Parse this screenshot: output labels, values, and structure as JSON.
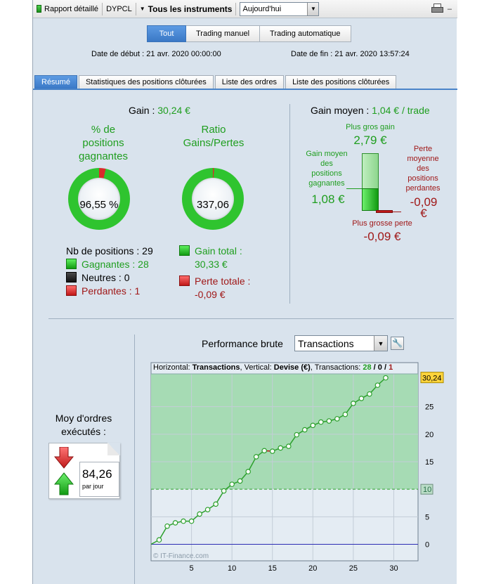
{
  "toolbar": {
    "report_label": "Rapport détaillé",
    "account": "DYPCL",
    "instruments_label": "Tous les instruments",
    "period": "Aujourd'hui",
    "minimize": "–"
  },
  "modes": {
    "tout": "Tout",
    "manual": "Trading manuel",
    "auto": "Trading automatique"
  },
  "dates": {
    "start": "Date de début : 21 avr. 2020 00:00:00",
    "end": "Date de fin : 21 avr. 2020 13:57:24"
  },
  "tabs": [
    "Résumé",
    "Statistiques des positions clôturées",
    "Liste des ordres",
    "Liste des positions clôturées"
  ],
  "summary": {
    "gain_label": "Gain :",
    "gain_value": "30,24 €",
    "pct_title_1": "% de",
    "pct_title_2": "positions",
    "pct_title_3": "gagnantes",
    "pct_value": "96,55 %",
    "pct_fraction": 0.9655,
    "ratio_title_1": "Ratio",
    "ratio_title_2": "Gains/Pertes",
    "ratio_value": "337,06",
    "ratio_loss_fraction": 0.003,
    "nb_positions": "Nb de positions : 29",
    "winners": "Gagnantes : 28",
    "neutral": "Neutres : 0",
    "losers": "Perdantes : 1",
    "gain_total_1": "Gain total :",
    "gain_total_2": "30,33 €",
    "perte_totale_1": "Perte totale :",
    "perte_totale_2": "-0,09 €"
  },
  "gain_moyen": {
    "title": "Gain moyen :",
    "value": "1,04 € / trade",
    "max_gain_label": "Plus gros gain",
    "max_gain_value": "2,79 €",
    "avg_win_label": [
      "Gain moyen",
      "des",
      "positions",
      "gagnantes"
    ],
    "avg_win_value": "1,08 €",
    "avg_loss_label": [
      "Perte",
      "moyenne",
      "des",
      "positions",
      "perdantes"
    ],
    "avg_loss_value": "-0,09",
    "avg_loss_unit": "€",
    "max_loss_label": "Plus grosse perte",
    "max_loss_value": "-0,09 €"
  },
  "performance": {
    "title": "Performance brute",
    "select_value": "Transactions",
    "header_h": "Horizontal: ",
    "header_h_val": "Transactions",
    "header_v": ", Vertical: ",
    "header_v_val": "Devise (€)",
    "header_t": ", Transactions: ",
    "header_t_w": "28",
    "header_t_sep1": " / ",
    "header_t_n": "0",
    "header_t_sep2": " / ",
    "header_t_l": "1",
    "watermark": "© IT-Finance.com"
  },
  "orders": {
    "title_1": "Moy d'ordres",
    "title_2": "exécutés :",
    "value": "84,26",
    "unit": "par jour"
  },
  "chart_data": {
    "type": "line",
    "x": [
      0,
      1,
      2,
      3,
      4,
      5,
      6,
      7,
      8,
      9,
      10,
      11,
      12,
      13,
      14,
      15,
      16,
      17,
      18,
      19,
      20,
      21,
      22,
      23,
      24,
      25,
      26,
      27,
      28,
      29
    ],
    "y": [
      0,
      0.8,
      3.3,
      3.9,
      4.2,
      4.2,
      5.5,
      6.3,
      7.3,
      9.7,
      10.9,
      11.5,
      13.2,
      15.9,
      17.0,
      16.91,
      17.5,
      17.8,
      19.9,
      20.8,
      21.6,
      22.2,
      22.4,
      22.8,
      23.6,
      25.6,
      26.5,
      27.3,
      28.9,
      30.24
    ],
    "loss_segment": [
      14,
      15
    ],
    "xlim": [
      0,
      33
    ],
    "ylim": [
      -3,
      33
    ],
    "x_ticks": [
      5,
      10,
      15,
      20,
      25,
      30
    ],
    "y_ticks": [
      0,
      5,
      15,
      20,
      25
    ],
    "ref_line_value": 10,
    "ref_line_label": "10",
    "last_value_label": "30,24",
    "zero_label": "0",
    "colors": {
      "line": "#2ca02c",
      "fill": "#a6dbb4",
      "loss": "#c01818",
      "zero": "#2b2bb3"
    }
  }
}
